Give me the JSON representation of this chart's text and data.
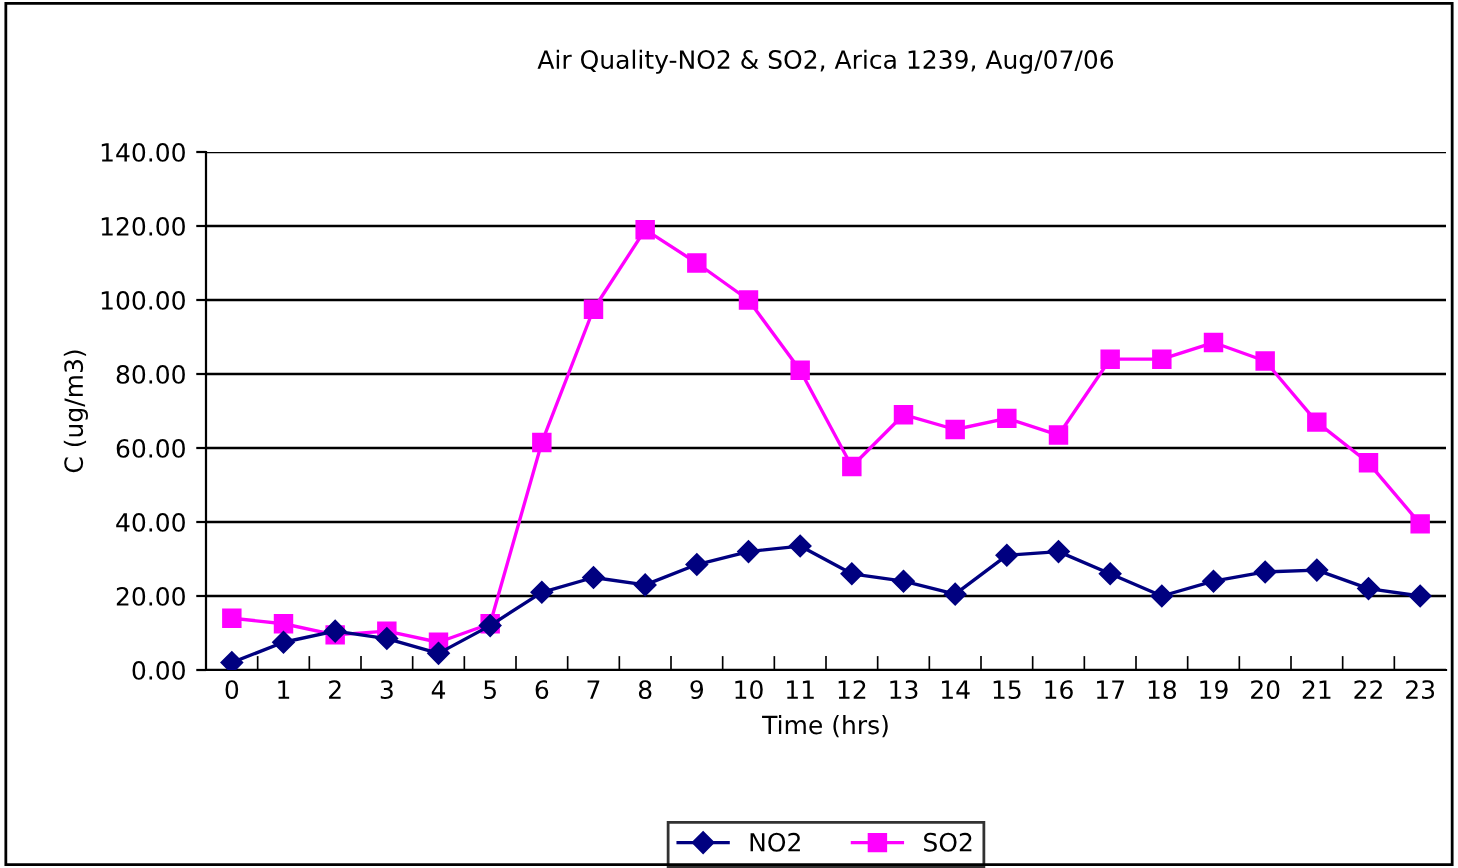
{
  "chart_data": {
    "type": "line",
    "title": "Air Quality-NO2 & SO2, Arica 1239, Aug/07/06",
    "xlabel": "Time (hrs)",
    "ylabel": "C (ug/m3)",
    "categories": [
      "0",
      "1",
      "2",
      "3",
      "4",
      "5",
      "6",
      "7",
      "8",
      "9",
      "10",
      "11",
      "12",
      "13",
      "14",
      "15",
      "16",
      "17",
      "18",
      "19",
      "20",
      "21",
      "22",
      "23"
    ],
    "series": [
      {
        "name": "NO2",
        "color": "#000080",
        "marker": "diamond",
        "values": [
          2,
          7.5,
          10.5,
          8.5,
          4.5,
          12,
          21,
          25,
          23,
          28.5,
          32,
          33.5,
          26,
          24,
          20.5,
          31,
          32,
          26,
          20,
          24,
          26.5,
          27,
          22,
          20
        ]
      },
      {
        "name": "SO2",
        "color": "#ff00ff",
        "marker": "square",
        "values": [
          14,
          12.5,
          9.5,
          10.5,
          7.5,
          12.5,
          61.5,
          97.5,
          119,
          110,
          100,
          81,
          55,
          69,
          65,
          68,
          63.5,
          84,
          84,
          88.5,
          83.5,
          67,
          56,
          39.5
        ]
      }
    ],
    "ylim": [
      0,
      140
    ],
    "yticks": [
      {
        "value": 0,
        "label": "0.00"
      },
      {
        "value": 20,
        "label": "20.00"
      },
      {
        "value": 40,
        "label": "40.00"
      },
      {
        "value": 60,
        "label": "60.00"
      },
      {
        "value": 80,
        "label": "80.00"
      },
      {
        "value": 100,
        "label": "100.00"
      },
      {
        "value": 120,
        "label": "120.00"
      },
      {
        "value": 140,
        "label": "140.00"
      }
    ],
    "grid": "y",
    "legend": "bottom"
  }
}
